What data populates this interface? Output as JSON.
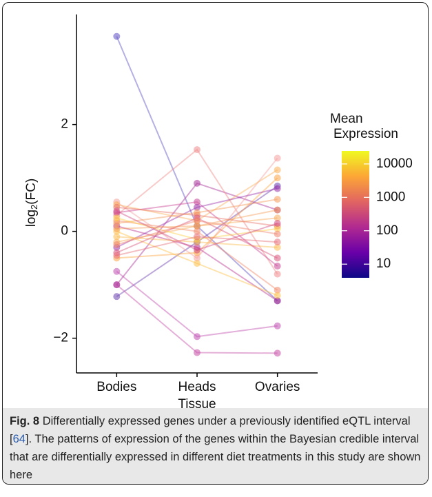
{
  "chart_data": {
    "type": "slope",
    "xlabel": "Tissue",
    "ylabel_parts": [
      "log",
      "2",
      "(FC)"
    ],
    "categories": [
      "Bodies",
      "Heads",
      "Ovaries"
    ],
    "ylim": [
      -2.65,
      4.06
    ],
    "yticks": [
      {
        "value": -2,
        "label": "−2"
      },
      0,
      2
    ],
    "series": [
      {
        "color": "#5c4fc2",
        "values": [
          3.65,
          0.1,
          -1.3
        ]
      },
      {
        "color": "#6a3fb0",
        "values": [
          -1.22,
          -0.2,
          0.85
        ]
      },
      {
        "color": "#c04fb0",
        "values": [
          -0.75,
          -1.97,
          -1.77
        ]
      },
      {
        "color": "#c64fa8",
        "values": [
          -1.0,
          -2.27,
          -2.28
        ]
      },
      {
        "color": "#a8329a",
        "values": [
          -1.0,
          0.9,
          0.4
        ]
      },
      {
        "color": "#f08a8a",
        "values": [
          0.3,
          1.53,
          -0.8
        ]
      },
      {
        "color": "#f5a0a0",
        "values": [
          0.55,
          -0.5,
          1.37
        ]
      },
      {
        "color": "#fbb05a",
        "values": [
          0.5,
          0.2,
          1.15
        ]
      },
      {
        "color": "#fca645",
        "values": [
          -0.5,
          -0.4,
          1.0
        ]
      },
      {
        "color": "#b83290",
        "values": [
          0.1,
          -0.3,
          -1.3
        ]
      },
      {
        "color": "#c94795",
        "values": [
          0.35,
          0.55,
          -0.65
        ]
      },
      {
        "color": "#9c34a8",
        "values": [
          -0.3,
          0.45,
          0.8
        ]
      },
      {
        "color": "#f28a6b",
        "values": [
          0.2,
          0.0,
          -1.1
        ]
      },
      {
        "color": "#fdc04a",
        "values": [
          0.0,
          -0.6,
          -1.2
        ]
      },
      {
        "color": "#f7ac5c",
        "values": [
          -0.2,
          0.1,
          0.25
        ]
      },
      {
        "color": "#e8756a",
        "values": [
          0.45,
          0.3,
          0.1
        ]
      },
      {
        "color": "#fbbd52",
        "values": [
          -0.1,
          -0.2,
          -0.3
        ]
      },
      {
        "color": "#f59c5c",
        "values": [
          0.15,
          0.35,
          0.6
        ]
      },
      {
        "color": "#d8587f",
        "values": [
          -0.4,
          0.25,
          -0.5
        ]
      },
      {
        "color": "#fdd048",
        "values": [
          0.25,
          -0.15,
          0.05
        ]
      },
      {
        "color": "#ef8670",
        "values": [
          -0.25,
          0.2,
          -0.05
        ]
      },
      {
        "color": "#f6a05a",
        "values": [
          0.05,
          0.1,
          0.4
        ]
      },
      {
        "color": "#d14f85",
        "values": [
          0.38,
          -0.35,
          0.15
        ]
      },
      {
        "color": "#e7707b",
        "values": [
          -0.45,
          -0.1,
          -0.2
        ]
      }
    ],
    "colorbar": {
      "title_lines": [
        "Mean",
        "Expression"
      ],
      "log": true,
      "lim": [
        3.9,
        24500
      ],
      "ticks": [
        10,
        100,
        1000,
        10000
      ],
      "colors": [
        "#0d0887",
        "#6a00a8",
        "#b12a90",
        "#e16462",
        "#fca636",
        "#f0f921"
      ]
    }
  },
  "caption": {
    "label": "Fig. 8",
    "text_before": "Differentially expressed genes under a previously identified eQTL interval [",
    "ref": "64",
    "text_after": "]. The patterns of expression of the genes within the Bayesian credible interval that are differentially expressed in different diet treatments in this study are shown here"
  }
}
